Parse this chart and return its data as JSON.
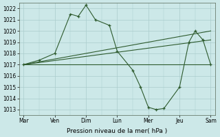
{
  "background_color": "#cce8e8",
  "grid_color": "#aacccc",
  "line_color": "#2d5a2d",
  "xlabel": "Pression niveau de la mer( hPa )",
  "xlabels": [
    "Mar",
    "Ven",
    "Dim",
    "Lun",
    "Mer",
    "Jeu",
    "Sam"
  ],
  "xtick_pos": [
    0,
    1,
    2,
    3,
    4,
    5,
    6
  ],
  "ylim": [
    1012.5,
    1022.5
  ],
  "yticks": [
    1013,
    1014,
    1015,
    1016,
    1017,
    1018,
    1019,
    1020,
    1021,
    1022
  ],
  "main_line": {
    "x": [
      0,
      0.5,
      1.0,
      1.5,
      1.75,
      2.0,
      2.3,
      2.75,
      3.0,
      3.5,
      3.75,
      4.0,
      4.25,
      4.5,
      5.0,
      5.3,
      5.5,
      5.75,
      6.0
    ],
    "y": [
      1017.0,
      1017.4,
      1018.0,
      1021.5,
      1021.3,
      1022.3,
      1021.0,
      1020.5,
      1018.2,
      1016.5,
      1015.0,
      1013.2,
      1013.0,
      1013.1,
      1015.0,
      1019.0,
      1020.0,
      1019.2,
      1017.0
    ]
  },
  "trend1": {
    "x": [
      0,
      6
    ],
    "y": [
      1017.0,
      1020.0
    ]
  },
  "trend2": {
    "x": [
      0,
      6
    ],
    "y": [
      1017.0,
      1019.2
    ]
  },
  "trend3": {
    "x": [
      0,
      6
    ],
    "y": [
      1017.0,
      1017.0
    ]
  }
}
